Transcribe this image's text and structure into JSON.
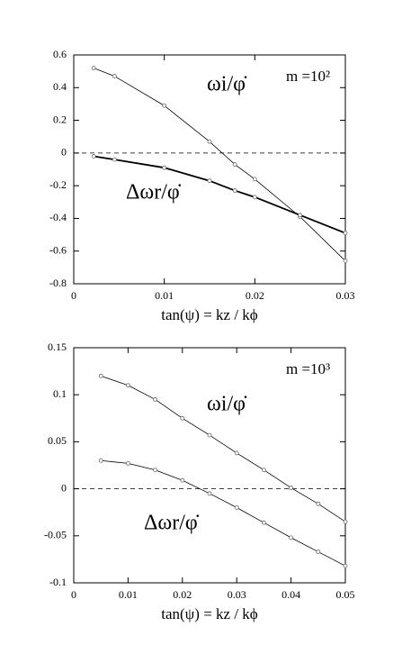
{
  "chart_data": [
    {
      "type": "line",
      "annotation": "m =10²",
      "xlabel": "tan(ψ) = kz / kϕ",
      "xlim": [
        0,
        0.03
      ],
      "xticks": [
        0,
        0.01,
        0.02,
        0.03
      ],
      "ylim": [
        -0.8,
        0.6
      ],
      "yticks": [
        0.6,
        0.4,
        0.2,
        0,
        -0.2,
        -0.4,
        -0.6,
        -0.8
      ],
      "zero_line": true,
      "markers": "open-circle",
      "x": [
        0.0022,
        0.0045,
        0.01,
        0.015,
        0.0178,
        0.02,
        0.025,
        0.03
      ],
      "series": [
        {
          "name": "ωi/φ̇",
          "color": "#000000",
          "width": 0.8,
          "values": [
            0.52,
            0.47,
            0.29,
            0.07,
            -0.07,
            -0.16,
            -0.39,
            -0.66
          ]
        },
        {
          "name": "Δωr/φ̇",
          "color": "#000000",
          "width": 1.8,
          "values": [
            -0.02,
            -0.04,
            -0.09,
            -0.17,
            -0.23,
            -0.27,
            -0.38,
            -0.49
          ]
        }
      ]
    },
    {
      "type": "line",
      "annotation": "m =10³",
      "xlabel": "tan(ψ) = kz / kϕ",
      "xlim": [
        0,
        0.05
      ],
      "xticks": [
        0,
        0.01,
        0.02,
        0.03,
        0.04,
        0.05
      ],
      "ylim": [
        -0.1,
        0.15
      ],
      "yticks": [
        0.15,
        0.1,
        0.05,
        0,
        -0.05,
        -0.1
      ],
      "zero_line": true,
      "markers": "open-circle",
      "x": [
        0.005,
        0.01,
        0.015,
        0.02,
        0.025,
        0.03,
        0.035,
        0.04,
        0.045,
        0.05
      ],
      "series": [
        {
          "name": "ωi/φ̇",
          "color": "#000000",
          "width": 0.8,
          "values": [
            0.12,
            0.11,
            0.095,
            0.075,
            0.057,
            0.038,
            0.02,
            0.001,
            -0.016,
            -0.035
          ]
        },
        {
          "name": "Δωr/φ̇",
          "color": "#000000",
          "width": 0.8,
          "values": [
            0.03,
            0.027,
            0.02,
            0.009,
            -0.005,
            -0.02,
            -0.036,
            -0.052,
            -0.067,
            -0.082
          ]
        }
      ]
    }
  ]
}
